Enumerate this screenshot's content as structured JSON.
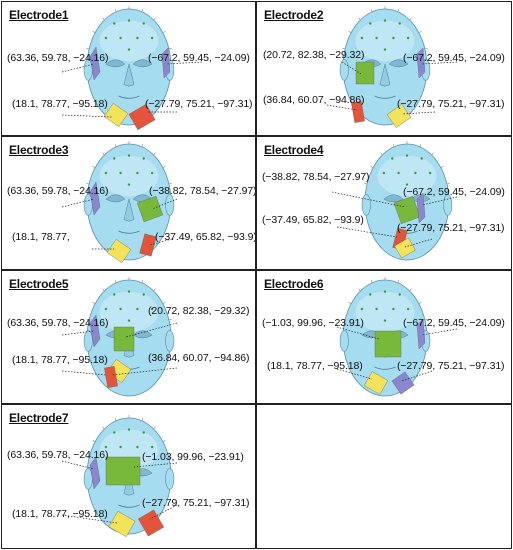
{
  "panels": [
    {
      "title": "Electrode1",
      "labels": [
        "(63.36, 59.78, −24.16)",
        "(−67.2, 59.45, −24.09)",
        "(18.1, 78.77, −95.18)",
        "(−27.79, 75.21, −97.31)"
      ]
    },
    {
      "title": "Electrode2",
      "labels": [
        "(20.72, 82.38, −29.32)",
        "(−67.2, 59.45, −24.09)",
        "(36.84, 60.07, −94.86)",
        "(−27.79, 75.21, −97.31)"
      ]
    },
    {
      "title": "Electrode3",
      "labels": [
        "(63.36, 59.78, −24.16)",
        "(−38.82, 78.54, −27.97)",
        "(18.1, 78.77,",
        "(−37.49, 65.82, −93.9)"
      ]
    },
    {
      "title": "Electrode4",
      "labels": [
        "(−38.82, 78.54, −27.97)",
        "(−67.2, 59.45, −24.09)",
        "(−37.49, 65.82, −93.9)",
        "(−27.79, 75.21, −97.31)"
      ]
    },
    {
      "title": "Electrode5",
      "labels": [
        "(63.36, 59.78, −24.16)",
        "(20.72, 82.38, −29.32)",
        "(18.1, 78.77, −95.18)",
        "(36.84, 60.07, −94.86)"
      ]
    },
    {
      "title": "Electrode6",
      "labels": [
        "(−1.03, 99.96, −23.91)",
        "(−67.2, 59.45, −24.09)",
        "(18.1, 78.77, −95.18)",
        "(−27.79, 75.21, −97.31)"
      ]
    },
    {
      "title": "Electrode7",
      "labels": [
        "(63.36, 59.78, −24.16)",
        "(−1.03, 99.96, −23.91)",
        "(18.1, 78.77, −95.18)",
        "(−27.79, 75.21, −97.31)"
      ]
    }
  ],
  "colors": {
    "face_fill": "#a6dcef",
    "face_stroke": "#5a8fa8",
    "green": "#78b83a",
    "yellow": "#f2e35a",
    "red": "#e4543a",
    "purple": "#8a86d0"
  }
}
